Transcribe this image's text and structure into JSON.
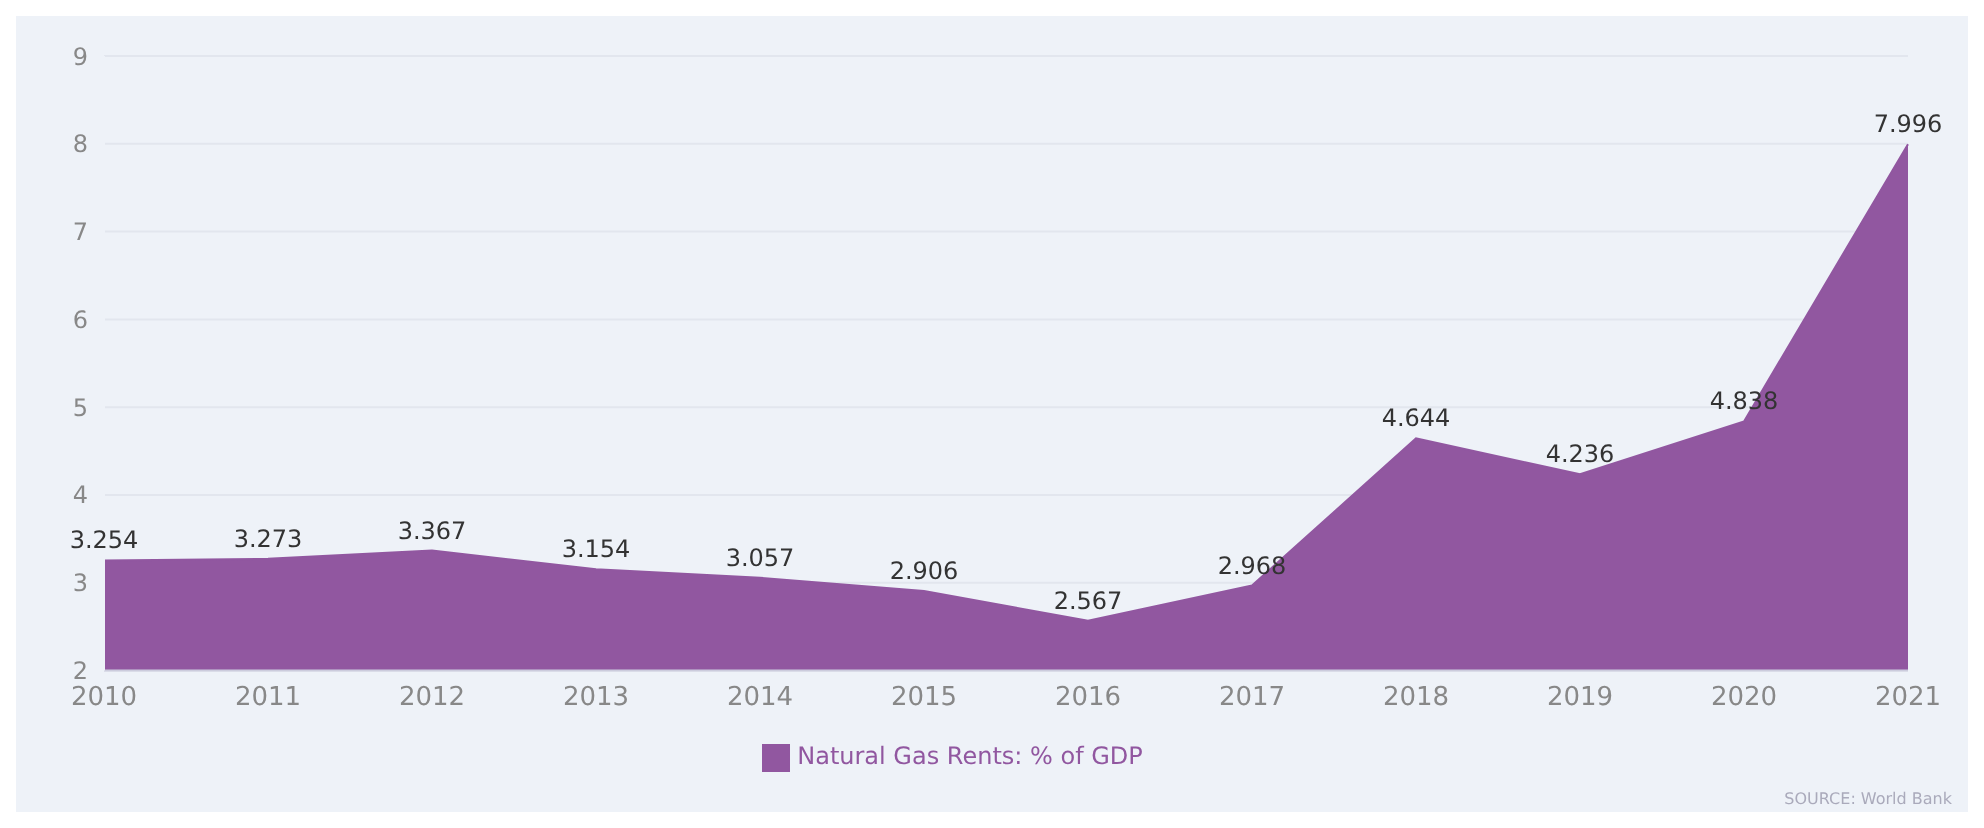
{
  "chart_data": {
    "type": "area",
    "categories": [
      "2010",
      "2011",
      "2012",
      "2013",
      "2014",
      "2015",
      "2016",
      "2017",
      "2018",
      "2019",
      "2020",
      "2021"
    ],
    "series": [
      {
        "name": "Natural Gas Rents: % of GDP",
        "color": "#9157a0",
        "values": [
          3.254,
          3.273,
          3.367,
          3.154,
          3.057,
          2.906,
          2.567,
          2.968,
          4.644,
          4.236,
          4.838,
          7.996
        ]
      }
    ],
    "ylim": [
      2,
      9
    ],
    "yticks": [
      2,
      3,
      4,
      5,
      6,
      7,
      8,
      9
    ],
    "grid": "y",
    "legend": "bottom",
    "data_labels": true,
    "annotations": [
      "SOURCE: World Bank"
    ]
  }
}
